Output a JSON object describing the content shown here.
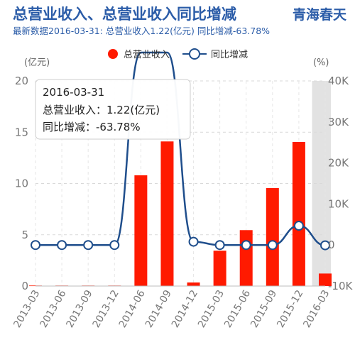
{
  "header": {
    "title": "总营业收入、总营业收入同比增减",
    "brand": "青海春天",
    "subtitle": "最新数据2016-03-31: 总营业收入1.22(亿元) 同比增减-63.78%"
  },
  "legend": {
    "bar_label": "总营业收入",
    "line_label": "同比增减",
    "bar_color": "#ff1a00",
    "line_color": "#1f4e8c"
  },
  "tooltip": {
    "date": "2016-03-31",
    "line1": "总营业收入：1.22(亿元)",
    "line2": "同比增减：-63.78%"
  },
  "chart_data": {
    "type": "bar",
    "categories": [
      "2013-03",
      "2013-06",
      "2013-09",
      "2013-12",
      "2014-06",
      "2014-09",
      "2014-12",
      "2015-03",
      "2015-06",
      "2015-09",
      "2015-12",
      "2016-03"
    ],
    "series": [
      {
        "name": "总营业收入",
        "type": "bar",
        "axis": "left",
        "values": [
          0.05,
          0.05,
          0.05,
          0.05,
          10.8,
          14.1,
          0.35,
          3.45,
          5.45,
          9.55,
          14.05,
          1.22
        ]
      },
      {
        "name": "同比增减",
        "type": "line",
        "axis": "right",
        "values": [
          0,
          0,
          0,
          0,
          53000,
          53000,
          800,
          0,
          0,
          0,
          4700,
          -63.78
        ]
      }
    ],
    "left_axis": {
      "unit": "(亿元)",
      "ylim": [
        0,
        20
      ],
      "ticks": [
        "0",
        "5",
        "10",
        "15",
        "20"
      ]
    },
    "right_axis": {
      "unit": "(%)",
      "ylim": [
        -10000,
        40000
      ],
      "ticks": [
        "-10K",
        "0",
        "10K",
        "20K",
        "30K",
        "40K"
      ]
    },
    "grid": true,
    "highlight_category": "2016-03"
  }
}
